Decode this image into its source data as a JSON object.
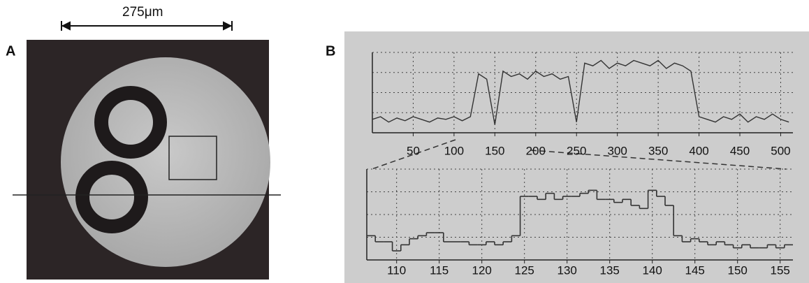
{
  "scale_label": "275μm",
  "panels": [
    {
      "label": "A"
    },
    {
      "label": "B"
    }
  ],
  "chart_data": [
    {
      "type": "line",
      "step": false,
      "color": "#333333",
      "x": [
        0,
        10,
        20,
        30,
        40,
        50,
        60,
        70,
        80,
        90,
        100,
        110,
        120,
        130,
        140,
        150,
        160,
        170,
        180,
        190,
        200,
        210,
        220,
        230,
        240,
        250,
        260,
        270,
        280,
        290,
        300,
        310,
        320,
        330,
        340,
        350,
        360,
        370,
        380,
        390,
        400,
        410,
        420,
        430,
        440,
        450,
        460,
        470,
        480,
        490,
        500,
        510
      ],
      "values": [
        0.5,
        0.6,
        0.4,
        0.55,
        0.45,
        0.6,
        0.5,
        0.4,
        0.55,
        0.5,
        0.6,
        0.45,
        0.6,
        2.2,
        2.0,
        0.3,
        2.3,
        2.1,
        2.2,
        2.0,
        2.3,
        2.1,
        2.2,
        2.0,
        2.1,
        0.4,
        2.6,
        2.5,
        2.7,
        2.4,
        2.6,
        2.5,
        2.7,
        2.6,
        2.5,
        2.7,
        2.4,
        2.6,
        2.5,
        2.3,
        0.6,
        0.5,
        0.4,
        0.6,
        0.5,
        0.7,
        0.4,
        0.6,
        0.5,
        0.7,
        0.5,
        0.4
      ],
      "xlim": [
        0,
        515
      ],
      "ylim": [
        0,
        3
      ],
      "xticks": [
        50,
        100,
        150,
        200,
        250,
        300,
        350,
        400,
        450,
        500
      ],
      "grid": true
    },
    {
      "type": "line",
      "step": true,
      "color": "#333333",
      "x": [
        107,
        108,
        109,
        110,
        111,
        112,
        113,
        114,
        115,
        116,
        117,
        118,
        119,
        120,
        121,
        122,
        123,
        124,
        125,
        126,
        127,
        128,
        129,
        130,
        131,
        132,
        133,
        134,
        135,
        136,
        137,
        138,
        139,
        140,
        141,
        142,
        143,
        144,
        145,
        146,
        147,
        148,
        149,
        150,
        151,
        152,
        153,
        154,
        155,
        156
      ],
      "values": [
        0.8,
        0.6,
        0.6,
        0.3,
        0.5,
        0.7,
        0.8,
        0.9,
        0.9,
        0.6,
        0.6,
        0.6,
        0.5,
        0.5,
        0.6,
        0.5,
        0.6,
        0.8,
        2.1,
        2.1,
        2.0,
        2.2,
        2.0,
        2.1,
        2.1,
        2.2,
        2.3,
        2.0,
        2.0,
        1.9,
        2.0,
        1.8,
        1.7,
        2.3,
        2.1,
        1.8,
        0.8,
        0.6,
        0.7,
        0.6,
        0.5,
        0.6,
        0.5,
        0.4,
        0.5,
        0.4,
        0.4,
        0.5,
        0.4,
        0.5
      ],
      "xlim": [
        106.5,
        156.5
      ],
      "ylim": [
        0,
        3
      ],
      "xticks": [
        110,
        115,
        120,
        125,
        130,
        135,
        140,
        145,
        150,
        155
      ],
      "grid": true
    }
  ]
}
